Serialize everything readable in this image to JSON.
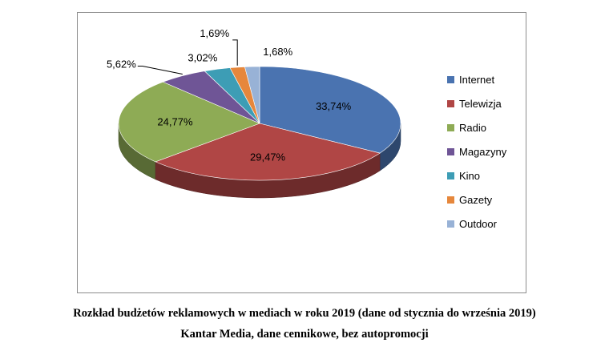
{
  "chart_data": {
    "type": "pie",
    "categories": [
      "Internet",
      "Telewizja",
      "Radio",
      "Magazyny",
      "Kino",
      "Gazety",
      "Outdoor"
    ],
    "values": [
      33.74,
      29.47,
      24.77,
      5.62,
      3.02,
      1.69,
      1.68
    ],
    "value_labels": [
      "33,74%",
      "29,47%",
      "24,77%",
      "5,62%",
      "3,02%",
      "1,69%",
      "1,68%"
    ],
    "colors": [
      "#4a73b0",
      "#b04645",
      "#8eab55",
      "#6f5596",
      "#3d9db5",
      "#e6873c",
      "#98b2d6"
    ],
    "style": "3d",
    "legend": "right"
  },
  "caption": {
    "line1": "Rozkład budżetów reklamowych w mediach w roku 2019 (dane od stycznia do września 2019)",
    "line2": "Kantar Media, dane cennikowe, bez autopromocji"
  }
}
